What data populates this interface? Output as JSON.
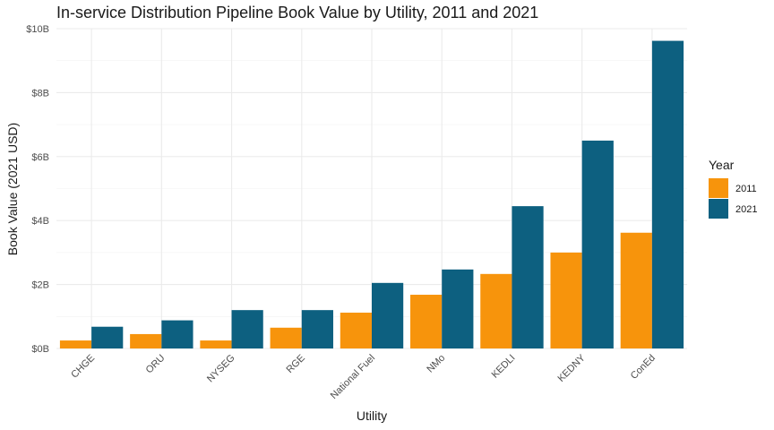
{
  "chart_data": {
    "type": "bar",
    "title": "In-service Distribution Pipeline Book Value by Utility, 2011 and 2021",
    "xlabel": "Utility",
    "ylabel": "Book Value (2021 USD)",
    "categories": [
      "CHGE",
      "ORU",
      "NYSEG",
      "RGE",
      "National Fuel",
      "NMo",
      "KEDLI",
      "KEDNY",
      "ConEd"
    ],
    "series": [
      {
        "name": "2011",
        "color": "#F7940C",
        "values": [
          0.25,
          0.45,
          0.25,
          0.65,
          1.12,
          1.68,
          2.33,
          3.0,
          3.62
        ]
      },
      {
        "name": "2021",
        "color": "#0D6080",
        "values": [
          0.68,
          0.88,
          1.2,
          1.2,
          2.05,
          2.47,
          4.45,
          6.5,
          9.62
        ]
      }
    ],
    "ylim": [
      0,
      10
    ],
    "yticks": [
      0,
      2,
      4,
      6,
      8,
      10
    ],
    "ytick_labels": [
      "$0B",
      "$2B",
      "$4B",
      "$6B",
      "$8B",
      "$10B"
    ],
    "grid": true,
    "legend": {
      "title": "Year",
      "position": "right"
    }
  }
}
